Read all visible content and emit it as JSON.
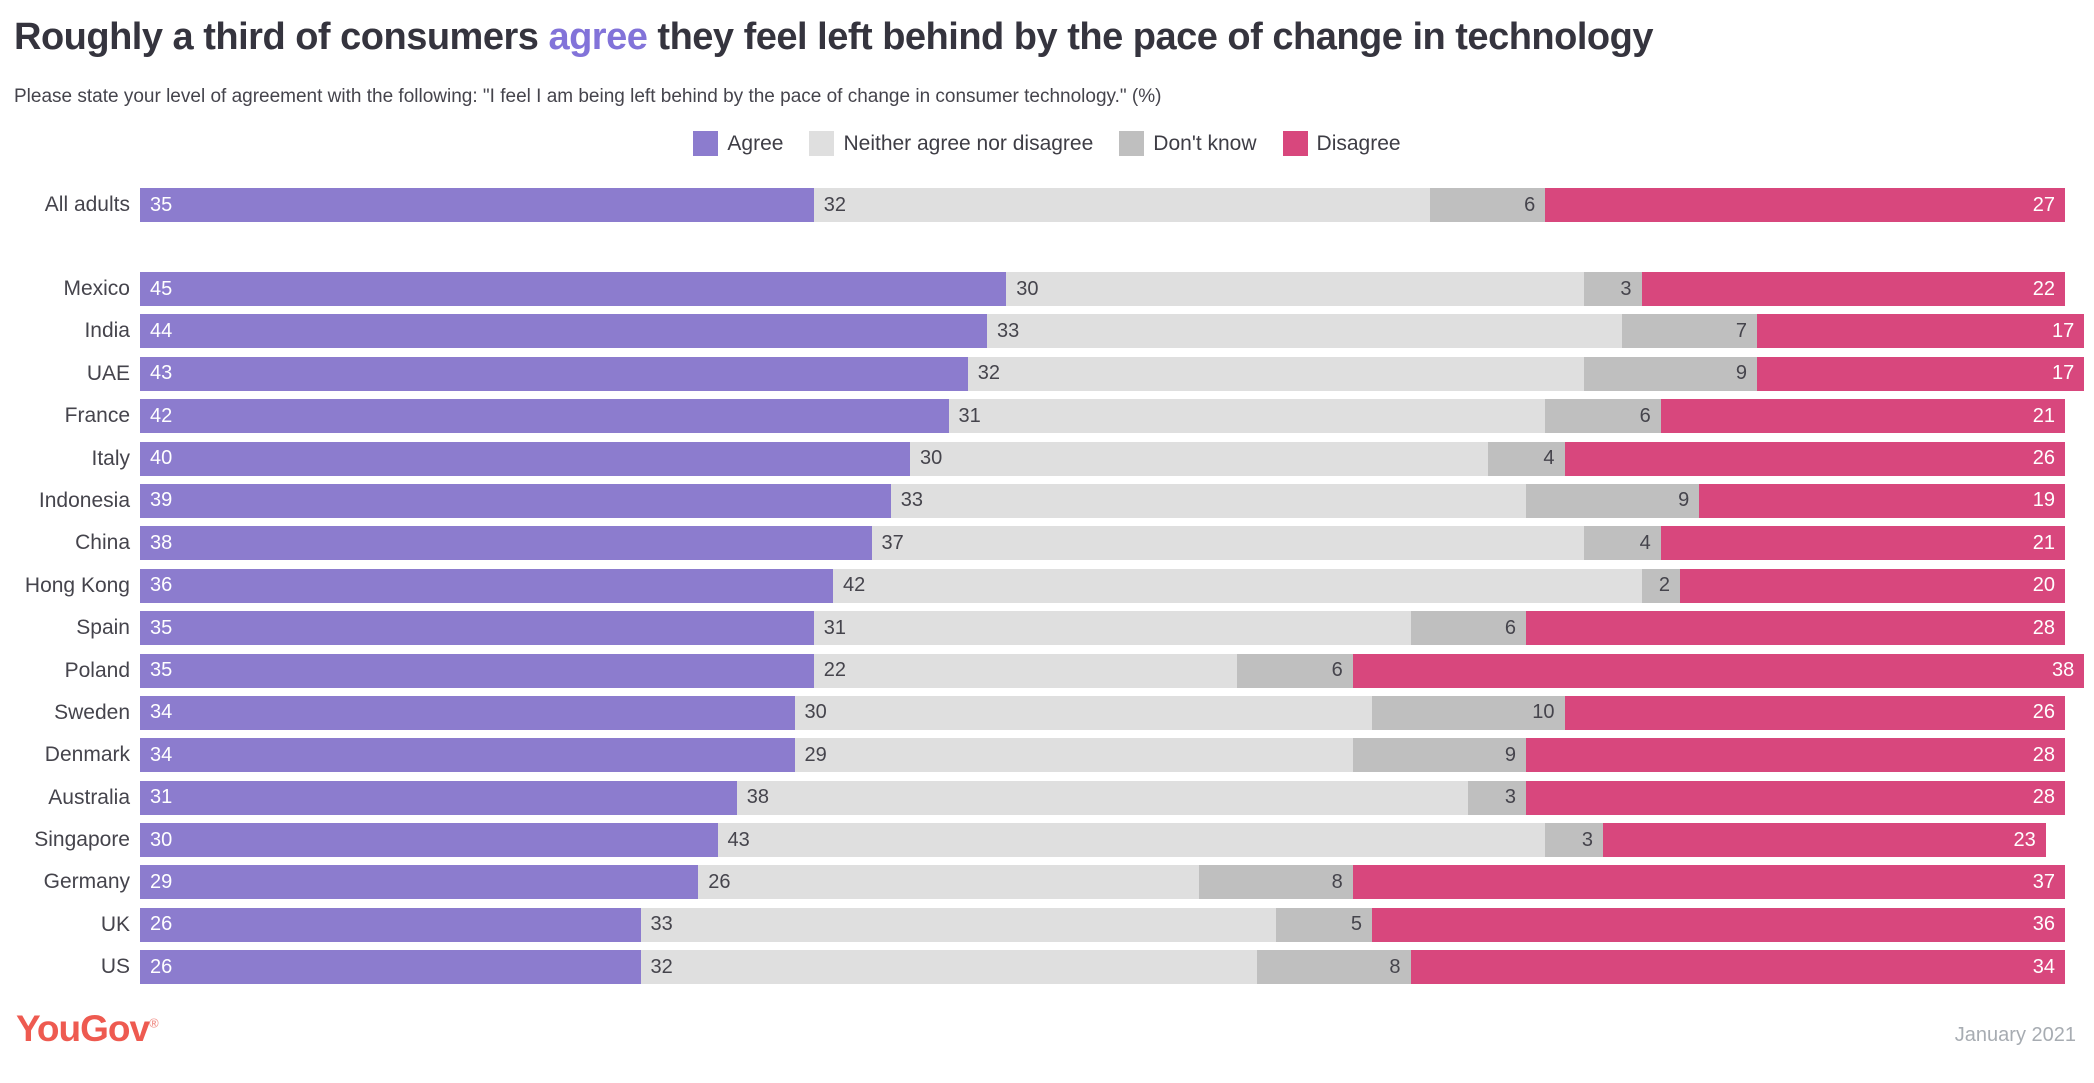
{
  "header": {
    "title_prefix": "Roughly a third of consumers ",
    "title_highlight": "agree",
    "title_suffix": " they feel left behind by the pace of change in technology",
    "subtitle": "Please state your level of agreement with the following: \"I feel I am being left behind by the pace of change in consumer technology.\" (%)"
  },
  "colors": {
    "agree": "#8C7CCE",
    "neither": "#DFDFDF",
    "dont_know": "#BFBFBF",
    "disagree": "#D8477D",
    "title_highlight": "#8273D9",
    "brand_red": "#EE5A50"
  },
  "legend": [
    {
      "label": "Agree",
      "color": "#8C7CCE"
    },
    {
      "label": "Neither agree nor disagree",
      "color": "#DFDFDF"
    },
    {
      "label": "Don't know",
      "color": "#BFBFBF"
    },
    {
      "label": "Disagree",
      "color": "#D8477D"
    }
  ],
  "chart_data": {
    "type": "bar",
    "orientation": "horizontal",
    "stacked": true,
    "units": "percent",
    "xlim": [
      0,
      100
    ],
    "grid": false,
    "legend_position": "top-center",
    "categories": [
      "All adults",
      "Mexico",
      "India",
      "UAE",
      "France",
      "Italy",
      "Indonesia",
      "China",
      "Hong Kong",
      "Spain",
      "Poland",
      "Sweden",
      "Denmark",
      "Australia",
      "Singapore",
      "Germany",
      "UK",
      "US"
    ],
    "series": [
      {
        "name": "Agree",
        "color": "#8C7CCE",
        "values": [
          35,
          45,
          44,
          43,
          42,
          40,
          39,
          38,
          36,
          35,
          35,
          34,
          34,
          31,
          30,
          29,
          26,
          26
        ]
      },
      {
        "name": "Neither agree nor disagree",
        "color": "#DFDFDF",
        "values": [
          32,
          30,
          33,
          32,
          31,
          30,
          33,
          37,
          42,
          31,
          22,
          30,
          29,
          38,
          43,
          26,
          33,
          32
        ]
      },
      {
        "name": "Don't know",
        "color": "#BFBFBF",
        "values": [
          6,
          3,
          7,
          9,
          6,
          4,
          9,
          4,
          2,
          6,
          6,
          10,
          9,
          3,
          3,
          8,
          5,
          8
        ]
      },
      {
        "name": "Disagree",
        "color": "#D8477D",
        "values": [
          27,
          22,
          17,
          17,
          21,
          26,
          19,
          21,
          20,
          28,
          38,
          26,
          28,
          28,
          23,
          37,
          36,
          34
        ]
      }
    ]
  },
  "footer": {
    "brand": "YouGov",
    "trademark": "®",
    "date": "January 2021"
  }
}
